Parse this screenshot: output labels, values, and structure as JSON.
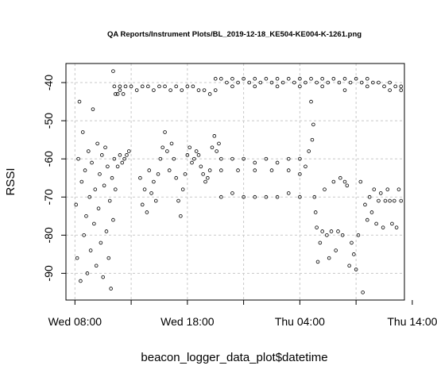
{
  "chart_data": {
    "type": "scatter",
    "title": "QA Reports/Instrument Plots/BL_2019-12-18_KE504-KE004-K-1261.png",
    "xlabel": "beacon_logger_data_plot$datetime",
    "ylabel": "RSSI",
    "x_unit": "hours since Wed 00:00",
    "xlim": [
      7.2,
      37.3
    ],
    "ylim": [
      -97,
      -35
    ],
    "x_ticks": [
      {
        "value": 8,
        "label": "Wed 08:00"
      },
      {
        "value": 13,
        "label": ""
      },
      {
        "value": 18,
        "label": "Wed 18:00"
      },
      {
        "value": 23,
        "label": ""
      },
      {
        "value": 28,
        "label": "Thu 04:00"
      },
      {
        "value": 33,
        "label": ""
      },
      {
        "value": 38,
        "label": "Thu 14:00"
      }
    ],
    "y_ticks": [
      {
        "value": -40,
        "label": "-40"
      },
      {
        "value": -50,
        "label": "-50"
      },
      {
        "value": -60,
        "label": "-60"
      },
      {
        "value": -70,
        "label": "-70"
      },
      {
        "value": -80,
        "label": "-80"
      },
      {
        "value": -90,
        "label": "-90"
      }
    ],
    "grid": true,
    "marker": "open-circle",
    "series": [
      {
        "values": [
          {
            "x": 8.1,
            "y": -72
          },
          {
            "x": 8.2,
            "y": -86
          },
          {
            "x": 8.3,
            "y": -60
          },
          {
            "x": 8.4,
            "y": -45
          },
          {
            "x": 8.5,
            "y": -92
          },
          {
            "x": 8.6,
            "y": -66
          },
          {
            "x": 8.7,
            "y": -53
          },
          {
            "x": 8.8,
            "y": -80
          },
          {
            "x": 8.9,
            "y": -63
          },
          {
            "x": 9.0,
            "y": -75
          },
          {
            "x": 9.1,
            "y": -90
          },
          {
            "x": 9.2,
            "y": -58
          },
          {
            "x": 9.3,
            "y": -70
          },
          {
            "x": 9.4,
            "y": -84
          },
          {
            "x": 9.5,
            "y": -61
          },
          {
            "x": 9.6,
            "y": -47
          },
          {
            "x": 9.7,
            "y": -77
          },
          {
            "x": 9.8,
            "y": -68
          },
          {
            "x": 9.9,
            "y": -88
          },
          {
            "x": 10.0,
            "y": -56
          },
          {
            "x": 10.1,
            "y": -73
          },
          {
            "x": 10.2,
            "y": -64
          },
          {
            "x": 10.3,
            "y": -82
          },
          {
            "x": 10.4,
            "y": -59
          },
          {
            "x": 10.5,
            "y": -91
          },
          {
            "x": 10.6,
            "y": -67
          },
          {
            "x": 10.7,
            "y": -57
          },
          {
            "x": 10.8,
            "y": -79
          },
          {
            "x": 10.9,
            "y": -62
          },
          {
            "x": 11.0,
            "y": -86
          },
          {
            "x": 11.1,
            "y": -71
          },
          {
            "x": 11.2,
            "y": -94
          },
          {
            "x": 11.3,
            "y": -65
          },
          {
            "x": 11.4,
            "y": -76
          },
          {
            "x": 11.5,
            "y": -60
          },
          {
            "x": 11.6,
            "y": -68
          },
          {
            "x": 11.8,
            "y": -62
          },
          {
            "x": 12.0,
            "y": -59
          },
          {
            "x": 12.2,
            "y": -61
          },
          {
            "x": 12.4,
            "y": -60
          },
          {
            "x": 12.6,
            "y": -59
          },
          {
            "x": 12.8,
            "y": -58
          },
          {
            "x": 11.4,
            "y": -37
          },
          {
            "x": 11.6,
            "y": -43
          },
          {
            "x": 11.8,
            "y": -43
          },
          {
            "x": 12.0,
            "y": -42
          },
          {
            "x": 12.3,
            "y": -43
          },
          {
            "x": 11.5,
            "y": -41
          },
          {
            "x": 12.0,
            "y": -41
          },
          {
            "x": 12.5,
            "y": -41
          },
          {
            "x": 13.0,
            "y": -41
          },
          {
            "x": 13.5,
            "y": -42
          },
          {
            "x": 14.0,
            "y": -41
          },
          {
            "x": 14.5,
            "y": -41
          },
          {
            "x": 15.0,
            "y": -42
          },
          {
            "x": 15.5,
            "y": -41
          },
          {
            "x": 16.0,
            "y": -41
          },
          {
            "x": 16.5,
            "y": -42
          },
          {
            "x": 17.0,
            "y": -41
          },
          {
            "x": 17.5,
            "y": -42
          },
          {
            "x": 18.0,
            "y": -41
          },
          {
            "x": 18.5,
            "y": -41
          },
          {
            "x": 19.0,
            "y": -42
          },
          {
            "x": 19.5,
            "y": -42
          },
          {
            "x": 20.0,
            "y": -43
          },
          {
            "x": 13.8,
            "y": -65
          },
          {
            "x": 14.0,
            "y": -72
          },
          {
            "x": 14.2,
            "y": -68
          },
          {
            "x": 14.4,
            "y": -74
          },
          {
            "x": 14.6,
            "y": -63
          },
          {
            "x": 14.8,
            "y": -69
          },
          {
            "x": 15.0,
            "y": -66
          },
          {
            "x": 15.2,
            "y": -71
          },
          {
            "x": 15.4,
            "y": -64
          },
          {
            "x": 15.6,
            "y": -60
          },
          {
            "x": 15.8,
            "y": -57
          },
          {
            "x": 16.0,
            "y": -53
          },
          {
            "x": 16.2,
            "y": -58
          },
          {
            "x": 16.4,
            "y": -63
          },
          {
            "x": 16.6,
            "y": -56
          },
          {
            "x": 16.8,
            "y": -60
          },
          {
            "x": 17.0,
            "y": -65
          },
          {
            "x": 17.2,
            "y": -71
          },
          {
            "x": 17.4,
            "y": -75
          },
          {
            "x": 17.6,
            "y": -68
          },
          {
            "x": 17.8,
            "y": -64
          },
          {
            "x": 18.0,
            "y": -59
          },
          {
            "x": 18.2,
            "y": -57
          },
          {
            "x": 18.4,
            "y": -61
          },
          {
            "x": 18.6,
            "y": -60
          },
          {
            "x": 18.8,
            "y": -58
          },
          {
            "x": 19.0,
            "y": -59
          },
          {
            "x": 19.2,
            "y": -62
          },
          {
            "x": 19.4,
            "y": -64
          },
          {
            "x": 19.6,
            "y": -66
          },
          {
            "x": 19.8,
            "y": -65
          },
          {
            "x": 20.0,
            "y": -63
          },
          {
            "x": 20.2,
            "y": -57
          },
          {
            "x": 20.4,
            "y": -54
          },
          {
            "x": 20.6,
            "y": -58
          },
          {
            "x": 20.8,
            "y": -56
          },
          {
            "x": 20.5,
            "y": -39
          },
          {
            "x": 21.0,
            "y": -39
          },
          {
            "x": 21.5,
            "y": -40
          },
          {
            "x": 22.0,
            "y": -39
          },
          {
            "x": 22.5,
            "y": -40
          },
          {
            "x": 23.0,
            "y": -39
          },
          {
            "x": 23.5,
            "y": -40
          },
          {
            "x": 24.0,
            "y": -39
          },
          {
            "x": 24.5,
            "y": -40
          },
          {
            "x": 25.0,
            "y": -39
          },
          {
            "x": 25.5,
            "y": -40
          },
          {
            "x": 26.0,
            "y": -39
          },
          {
            "x": 26.5,
            "y": -40
          },
          {
            "x": 27.0,
            "y": -39
          },
          {
            "x": 27.5,
            "y": -40
          },
          {
            "x": 28.0,
            "y": -39
          },
          {
            "x": 28.5,
            "y": -40
          },
          {
            "x": 29.0,
            "y": -39
          },
          {
            "x": 29.5,
            "y": -40
          },
          {
            "x": 30.0,
            "y": -39
          },
          {
            "x": 30.5,
            "y": -40
          },
          {
            "x": 31.0,
            "y": -39
          },
          {
            "x": 31.5,
            "y": -40
          },
          {
            "x": 32.0,
            "y": -39
          },
          {
            "x": 32.5,
            "y": -40
          },
          {
            "x": 33.0,
            "y": -39
          },
          {
            "x": 33.5,
            "y": -40
          },
          {
            "x": 34.0,
            "y": -39
          },
          {
            "x": 34.5,
            "y": -40
          },
          {
            "x": 35.0,
            "y": -40
          },
          {
            "x": 35.5,
            "y": -41
          },
          {
            "x": 36.0,
            "y": -40
          },
          {
            "x": 36.5,
            "y": -41
          },
          {
            "x": 37.0,
            "y": -41
          },
          {
            "x": 20.5,
            "y": -42
          },
          {
            "x": 22.0,
            "y": -41
          },
          {
            "x": 24.0,
            "y": -41
          },
          {
            "x": 26.0,
            "y": -41
          },
          {
            "x": 28.0,
            "y": -41
          },
          {
            "x": 30.0,
            "y": -41
          },
          {
            "x": 32.0,
            "y": -42
          },
          {
            "x": 34.0,
            "y": -41
          },
          {
            "x": 36.0,
            "y": -42
          },
          {
            "x": 37.0,
            "y": -42
          },
          {
            "x": 21.0,
            "y": -60
          },
          {
            "x": 22.0,
            "y": -60
          },
          {
            "x": 23.0,
            "y": -60
          },
          {
            "x": 24.0,
            "y": -61
          },
          {
            "x": 25.0,
            "y": -60
          },
          {
            "x": 26.0,
            "y": -61
          },
          {
            "x": 27.0,
            "y": -60
          },
          {
            "x": 28.0,
            "y": -60
          },
          {
            "x": 21.0,
            "y": -63
          },
          {
            "x": 22.5,
            "y": -63
          },
          {
            "x": 24.0,
            "y": -63
          },
          {
            "x": 25.5,
            "y": -63
          },
          {
            "x": 27.0,
            "y": -63
          },
          {
            "x": 28.0,
            "y": -64
          },
          {
            "x": 21.0,
            "y": -70
          },
          {
            "x": 22.0,
            "y": -69
          },
          {
            "x": 23.0,
            "y": -70
          },
          {
            "x": 24.0,
            "y": -70
          },
          {
            "x": 25.0,
            "y": -70
          },
          {
            "x": 26.0,
            "y": -70
          },
          {
            "x": 27.0,
            "y": -69
          },
          {
            "x": 28.0,
            "y": -70
          },
          {
            "x": 28.5,
            "y": -62
          },
          {
            "x": 28.8,
            "y": -58
          },
          {
            "x": 29.0,
            "y": -45
          },
          {
            "x": 29.1,
            "y": -55
          },
          {
            "x": 29.2,
            "y": -51
          },
          {
            "x": 29.3,
            "y": -70
          },
          {
            "x": 29.4,
            "y": -74
          },
          {
            "x": 29.5,
            "y": -78
          },
          {
            "x": 29.6,
            "y": -87
          },
          {
            "x": 29.8,
            "y": -82
          },
          {
            "x": 30.0,
            "y": -79
          },
          {
            "x": 30.2,
            "y": -68
          },
          {
            "x": 30.4,
            "y": -80
          },
          {
            "x": 30.6,
            "y": -86
          },
          {
            "x": 30.8,
            "y": -79
          },
          {
            "x": 31.0,
            "y": -66
          },
          {
            "x": 31.2,
            "y": -84
          },
          {
            "x": 31.4,
            "y": -79
          },
          {
            "x": 31.6,
            "y": -65
          },
          {
            "x": 31.8,
            "y": -80
          },
          {
            "x": 32.0,
            "y": -66
          },
          {
            "x": 32.2,
            "y": -67
          },
          {
            "x": 32.4,
            "y": -88
          },
          {
            "x": 32.6,
            "y": -82
          },
          {
            "x": 32.8,
            "y": -85
          },
          {
            "x": 33.0,
            "y": -89
          },
          {
            "x": 33.2,
            "y": -80
          },
          {
            "x": 33.4,
            "y": -66
          },
          {
            "x": 33.6,
            "y": -95
          },
          {
            "x": 33.8,
            "y": -72
          },
          {
            "x": 34.0,
            "y": -76
          },
          {
            "x": 34.2,
            "y": -70
          },
          {
            "x": 34.4,
            "y": -74
          },
          {
            "x": 34.6,
            "y": -68
          },
          {
            "x": 34.8,
            "y": -77
          },
          {
            "x": 35.0,
            "y": -71
          },
          {
            "x": 35.2,
            "y": -69
          },
          {
            "x": 35.4,
            "y": -78
          },
          {
            "x": 35.6,
            "y": -71
          },
          {
            "x": 35.8,
            "y": -68
          },
          {
            "x": 36.0,
            "y": -71
          },
          {
            "x": 36.2,
            "y": -77
          },
          {
            "x": 36.4,
            "y": -71
          },
          {
            "x": 36.6,
            "y": -78
          },
          {
            "x": 36.8,
            "y": -68
          },
          {
            "x": 37.0,
            "y": -71
          }
        ]
      }
    ]
  }
}
